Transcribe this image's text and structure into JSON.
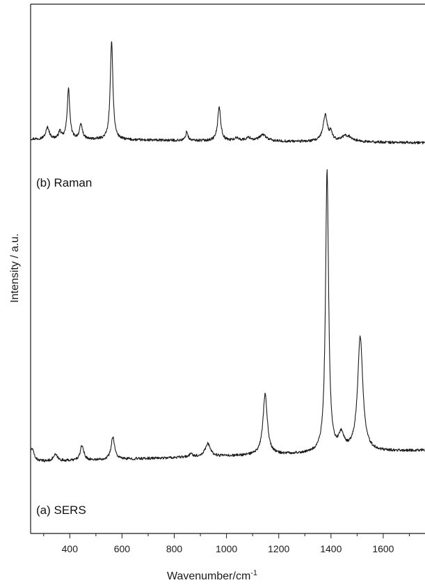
{
  "chart_data": {
    "type": "line",
    "xlabel": "Wavenumber/cm",
    "xlabel_sup": "-1",
    "ylabel": "Intensity / a.u.",
    "xlim": [
      250,
      1760
    ],
    "ylim": [
      0,
      1
    ],
    "x_ticks": [
      400,
      600,
      800,
      1000,
      1200,
      1400,
      1600
    ],
    "x_tick_labels": [
      "400",
      "600",
      "800",
      "1000",
      "1200",
      "1400",
      "1600"
    ],
    "minor_tick_step": 100,
    "y_ticks_visible": false,
    "grid": false,
    "series": [
      {
        "name": "(b) Raman",
        "baseline_start": 0.745,
        "baseline_end": 0.738,
        "noise": 0.0025,
        "peaks": [
          {
            "x": 315,
            "height": 0.022,
            "width": 8
          },
          {
            "x": 362,
            "height": 0.014,
            "width": 6
          },
          {
            "x": 395,
            "height": 0.095,
            "width": 6
          },
          {
            "x": 443,
            "height": 0.027,
            "width": 7
          },
          {
            "x": 560,
            "height": 0.188,
            "width": 6
          },
          {
            "x": 848,
            "height": 0.017,
            "width": 5
          },
          {
            "x": 972,
            "height": 0.064,
            "width": 7
          },
          {
            "x": 1040,
            "height": 0.005,
            "width": 12
          },
          {
            "x": 1085,
            "height": 0.006,
            "width": 12
          },
          {
            "x": 1140,
            "height": 0.012,
            "width": 16
          },
          {
            "x": 1378,
            "height": 0.05,
            "width": 10
          },
          {
            "x": 1400,
            "height": 0.015,
            "width": 6
          },
          {
            "x": 1460,
            "height": 0.012,
            "width": 25
          }
        ]
      },
      {
        "name": "(a) SERS",
        "baseline_start": 0.135,
        "baseline_end": 0.157,
        "noise": 0.0025,
        "peaks": [
          {
            "x": 255,
            "height": 0.025,
            "width": 10
          },
          {
            "x": 345,
            "height": 0.012,
            "width": 10
          },
          {
            "x": 447,
            "height": 0.028,
            "width": 8
          },
          {
            "x": 565,
            "height": 0.043,
            "width": 8
          },
          {
            "x": 865,
            "height": 0.006,
            "width": 8
          },
          {
            "x": 928,
            "height": 0.025,
            "width": 12
          },
          {
            "x": 1148,
            "height": 0.114,
            "width": 10
          },
          {
            "x": 1385,
            "height": 0.532,
            "width": 7
          },
          {
            "x": 1440,
            "height": 0.03,
            "width": 12
          },
          {
            "x": 1512,
            "height": 0.217,
            "width": 12
          }
        ]
      }
    ]
  }
}
